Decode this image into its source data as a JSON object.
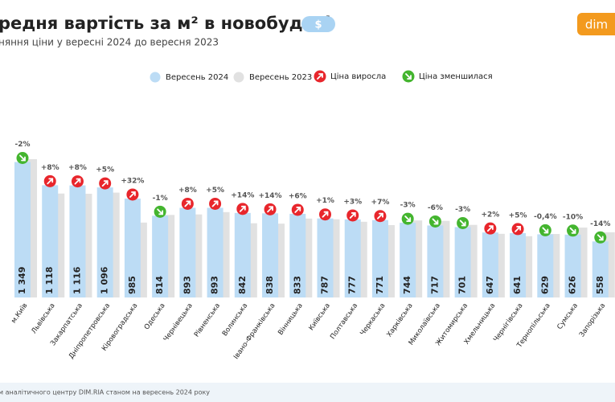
{
  "chart_data": {
    "type": "bar",
    "title": "редня вартість за м² в новобудові",
    "badge": "$",
    "subtitle": "няння ціни у вересні 2024 до вересня 2023",
    "logo": "dim",
    "source": "м аналітичного центру DIM.RIA станом на вересень 2024 року",
    "categories": [
      "м.Київ",
      "Львівська",
      "Закарпатська",
      "Дніпропетровська",
      "Кіровоградська",
      "Одеська",
      "Чернівецька",
      "Рівненська",
      "Волинська",
      "Івано-Франківська",
      "Вінницька",
      "Київська",
      "Полтавська",
      "Черкаська",
      "Харківська",
      "Миколаївська",
      "Житомирська",
      "Хмельницька",
      "Чернігівська",
      "Тернопільська",
      "Сумська",
      "Запорізька"
    ],
    "series": [
      {
        "name": "Вересень 2024",
        "color": "#bcdcf5",
        "values": [
          1349,
          1118,
          1116,
          1096,
          985,
          814,
          893,
          893,
          842,
          838,
          833,
          787,
          777,
          771,
          744,
          717,
          701,
          647,
          641,
          629,
          626,
          558
        ],
        "value_labels": [
          "1 349",
          "1 118",
          "1 116",
          "1 096",
          "985",
          "814",
          "893",
          "893",
          "842",
          "838",
          "833",
          "787",
          "777",
          "771",
          "744",
          "717",
          "701",
          "647",
          "641",
          "629",
          "626",
          "558"
        ]
      },
      {
        "name": "Вересень 2023",
        "color": "#e1e1e1",
        "values": [
          1377,
          1035,
          1033,
          1044,
          746,
          822,
          827,
          850,
          739,
          735,
          786,
          779,
          754,
          721,
          767,
          763,
          723,
          634,
          610,
          632,
          696,
          649
        ]
      }
    ],
    "changes": {
      "values": [
        -2,
        8,
        8,
        5,
        32,
        -1,
        8,
        5,
        14,
        14,
        6,
        1,
        3,
        7,
        -3,
        -6,
        -3,
        2,
        5,
        -0.4,
        -10,
        -14
      ],
      "value_labels": [
        "-2%",
        "+8%",
        "+8%",
        "+5%",
        "+32%",
        "-1%",
        "+8%",
        "+5%",
        "+14%",
        "+14%",
        "+6%",
        "+1%",
        "+3%",
        "+7%",
        "-3%",
        "-6%",
        "-3%",
        "+2%",
        "+5%",
        "-0,4%",
        "-10%",
        "-14%"
      ]
    },
    "change_legend": [
      {
        "name": "Ціна виросла",
        "color": "#e8262c"
      },
      {
        "name": "Ціна зменшилася",
        "color": "#44b52f"
      }
    ]
  }
}
